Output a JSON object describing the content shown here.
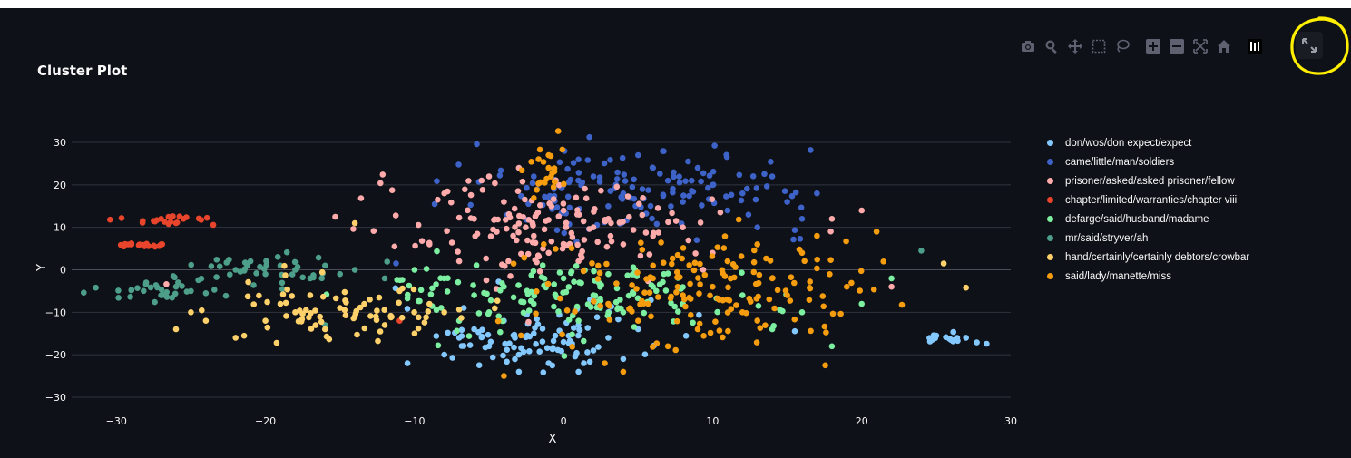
{
  "chart_data": {
    "type": "scatter",
    "title": "Cluster Plot",
    "xlabel": "X",
    "ylabel": "Y",
    "xlim": [
      -33,
      30
    ],
    "ylim": [
      -33,
      33
    ],
    "x_ticks": [
      -30,
      -20,
      -10,
      0,
      10,
      20,
      30
    ],
    "y_ticks": [
      30,
      20,
      10,
      0,
      -10,
      -20,
      -30
    ],
    "tick_labels_x": [
      "−30",
      "−20",
      "−10",
      "0",
      "10",
      "20",
      "30"
    ],
    "tick_labels_y": [
      "30",
      "20",
      "10",
      "0",
      "−10",
      "−20",
      "−30"
    ],
    "grid": "horizontal",
    "legend_position": "right",
    "series": [
      {
        "name": "don/wos/don expect/expect",
        "color": "#83c9ff",
        "regions": [
          [
            -2,
            -16,
            4.5,
            4
          ],
          [
            25.6,
            -16.2,
            1.2,
            0.8
          ]
        ],
        "values": [
          [
            -6,
            -14
          ],
          [
            -5,
            -18
          ],
          [
            -4,
            -12
          ],
          [
            -3,
            -20
          ],
          [
            -2,
            -15
          ],
          [
            -1,
            -22
          ],
          [
            0,
            -17
          ],
          [
            1,
            -13
          ],
          [
            2,
            -19
          ],
          [
            3,
            -16
          ],
          [
            4,
            -21
          ],
          [
            -7,
            -16
          ],
          [
            5,
            -14
          ],
          [
            -3,
            -24
          ],
          [
            1,
            -24
          ],
          [
            6,
            -18
          ],
          [
            -8,
            -20
          ],
          [
            25,
            -15.5
          ],
          [
            26,
            -16.5
          ],
          [
            27,
            -16
          ]
        ]
      },
      {
        "name": "came/little/man/soldiers",
        "color": "#3d62c8",
        "regions": [
          [
            5,
            19,
            6,
            5
          ]
        ],
        "values": [
          [
            0,
            20
          ],
          [
            2,
            22
          ],
          [
            4,
            18
          ],
          [
            6,
            24
          ],
          [
            8,
            16
          ],
          [
            10,
            20
          ],
          [
            12,
            18
          ],
          [
            -2,
            22
          ],
          [
            1,
            26
          ],
          [
            5,
            27
          ],
          [
            3,
            15
          ],
          [
            7,
            21
          ],
          [
            11,
            14
          ],
          [
            14,
            22
          ],
          [
            16,
            12
          ],
          [
            9,
            24
          ],
          [
            -1,
            17
          ],
          [
            13,
            10
          ],
          [
            15,
            16
          ],
          [
            17,
            18
          ]
        ]
      },
      {
        "name": "prisoner/asked/asked prisoner/fellow",
        "color": "#ffabab",
        "regions": [
          [
            -1,
            10,
            6,
            5.5
          ]
        ],
        "values": [
          [
            -6,
            12
          ],
          [
            -4,
            16
          ],
          [
            -2,
            8
          ],
          [
            0,
            14
          ],
          [
            2,
            10
          ],
          [
            4,
            6
          ],
          [
            -8,
            18
          ],
          [
            -5,
            22
          ],
          [
            -1,
            4
          ],
          [
            3,
            12
          ],
          [
            6,
            8
          ],
          [
            -9,
            6
          ],
          [
            -3,
            24
          ],
          [
            1,
            2
          ],
          [
            8,
            10
          ],
          [
            -7,
            2
          ],
          [
            10,
            4
          ],
          [
            18,
            12
          ],
          [
            20,
            14
          ],
          [
            22,
            -4
          ]
        ]
      },
      {
        "name": "chapter/limited/warranties/chapter viii",
        "color": "#e8452c",
        "regions": [
          [
            -28.5,
            5.8,
            1.2,
            0.4
          ],
          [
            -27,
            11.8,
            1.5,
            0.8
          ]
        ],
        "values": [
          [
            -29.5,
            5.5
          ],
          [
            -29,
            6
          ],
          [
            -28.5,
            5.8
          ],
          [
            -28,
            6
          ],
          [
            -27.5,
            5.7
          ],
          [
            -27,
            6
          ],
          [
            -27.5,
            11.5
          ],
          [
            -27,
            12
          ],
          [
            -26.5,
            12.5
          ],
          [
            -26,
            11
          ],
          [
            -25.5,
            12
          ],
          [
            -26.5,
            10.8
          ],
          [
            -23.5,
            10.6
          ],
          [
            -11,
            -12
          ]
        ]
      },
      {
        "name": "defarge/said/husband/madame",
        "color": "#7defa1",
        "regions": [
          [
            0,
            -6,
            6.5,
            4.5
          ]
        ],
        "values": [
          [
            -8,
            -2
          ],
          [
            -6,
            -6
          ],
          [
            -4,
            -4
          ],
          [
            -2,
            -8
          ],
          [
            0,
            -2
          ],
          [
            2,
            -6
          ],
          [
            4,
            -10
          ],
          [
            6,
            -4
          ],
          [
            -5,
            -10
          ],
          [
            1,
            -12
          ],
          [
            8,
            -8
          ],
          [
            -7,
            -12
          ],
          [
            3,
            -1
          ],
          [
            12,
            -6
          ],
          [
            14,
            -14
          ],
          [
            -10,
            0
          ],
          [
            16,
            -10
          ],
          [
            18,
            -18
          ],
          [
            20,
            -8
          ],
          [
            22,
            -2
          ]
        ]
      },
      {
        "name": "mr/said/stryver/ah",
        "color": "#4d9f8a",
        "regions": [
          [
            -26.5,
            -5,
            2.3,
            1.3
          ],
          [
            -20,
            0,
            3,
            2
          ]
        ],
        "values": [
          [
            -29,
            -4.8
          ],
          [
            -28,
            -3
          ],
          [
            -27,
            -6
          ],
          [
            -26,
            -4
          ],
          [
            -25,
            -5
          ],
          [
            -24,
            -5.5
          ],
          [
            -22,
            0
          ],
          [
            -21,
            2
          ],
          [
            -20,
            -1
          ],
          [
            -19,
            1
          ],
          [
            -18,
            0
          ],
          [
            -17,
            -2
          ],
          [
            -16,
            1
          ],
          [
            -15,
            -1
          ],
          [
            -14,
            0
          ],
          [
            -12,
            -2
          ],
          [
            -16,
            -13
          ],
          [
            24,
            4.5
          ]
        ]
      },
      {
        "name": "hand/certainly/certainly debtors/crowbar",
        "color": "#ffd16a",
        "regions": [
          [
            -15,
            -9,
            4,
            3.5
          ]
        ],
        "values": [
          [
            -20,
            -12
          ],
          [
            -19,
            -8
          ],
          [
            -18,
            -10
          ],
          [
            -17,
            -6
          ],
          [
            -16,
            -14
          ],
          [
            -15,
            -9
          ],
          [
            -14,
            -11
          ],
          [
            -13,
            -7
          ],
          [
            -12,
            -13
          ],
          [
            -11,
            -5
          ],
          [
            -10,
            -15
          ],
          [
            -22,
            -16
          ],
          [
            -24,
            -12
          ],
          [
            -25,
            -10
          ],
          [
            -26,
            -14
          ],
          [
            -9,
            -8
          ],
          [
            -8,
            -10
          ],
          [
            -14,
            11
          ],
          [
            25.5,
            1.5
          ],
          [
            27,
            -4.2
          ]
        ]
      },
      {
        "name": "said/lady/manette/miss",
        "color": "#f59d0f",
        "regions": [
          [
            9,
            -5,
            5.5,
            6.5
          ],
          [
            -1,
            24,
            0.8,
            3
          ]
        ],
        "values": [
          [
            6,
            -2
          ],
          [
            8,
            -6
          ],
          [
            10,
            -4
          ],
          [
            12,
            -10
          ],
          [
            14,
            -2
          ],
          [
            16,
            4
          ],
          [
            5,
            -12
          ],
          [
            9,
            -14
          ],
          [
            11,
            2
          ],
          [
            13,
            6
          ],
          [
            7,
            -18
          ],
          [
            15,
            -6
          ],
          [
            17,
            8
          ],
          [
            3,
            -8
          ],
          [
            19,
            -4
          ],
          [
            -1,
            24
          ],
          [
            -1,
            27
          ],
          [
            21,
            9
          ],
          [
            -4,
            -25
          ],
          [
            4,
            -24
          ]
        ]
      }
    ]
  },
  "legend": {
    "items": [
      {
        "label": "don/wos/don expect/expect",
        "color": "#83c9ff"
      },
      {
        "label": "came/little/man/soldiers",
        "color": "#3d62c8"
      },
      {
        "label": "prisoner/asked/asked prisoner/fellow",
        "color": "#ffabab"
      },
      {
        "label": "chapter/limited/warranties/chapter viii",
        "color": "#e8452c"
      },
      {
        "label": "defarge/said/husband/madame",
        "color": "#7defa1"
      },
      {
        "label": "mr/said/stryver/ah",
        "color": "#4d9f8a"
      },
      {
        "label": "hand/certainly/certainly debtors/crowbar",
        "color": "#ffd16a"
      },
      {
        "label": "said/lady/manette/miss",
        "color": "#f59d0f"
      }
    ]
  },
  "modebar": {
    "buttons": [
      "camera-icon",
      "zoom-icon",
      "pan-icon",
      "box-select-icon",
      "lasso-icon",
      "zoom-in-icon",
      "zoom-out-icon",
      "autoscale-icon",
      "reset-axes-icon",
      "plotly-logo-icon"
    ],
    "fullscreen": "fullscreen-icon"
  },
  "colors": {
    "background": "#0e1117",
    "text": "#fafafa",
    "grid": "#31333f",
    "modebar_icon": "#5f6170",
    "highlight": "#ffee00"
  }
}
